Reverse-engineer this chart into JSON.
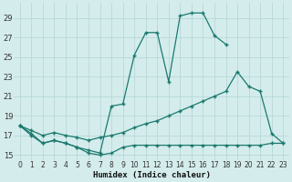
{
  "xlabel": "Humidex (Indice chaleur)",
  "color": "#1a7a6e",
  "bg_color": "#d4ecec",
  "grid_color": "#b8d8d8",
  "ylim": [
    14.5,
    30.5
  ],
  "xlim": [
    -0.5,
    23.5
  ],
  "yticks": [
    15,
    17,
    19,
    21,
    23,
    25,
    27,
    29
  ],
  "xticks": [
    0,
    1,
    2,
    3,
    4,
    5,
    6,
    7,
    8,
    9,
    10,
    11,
    12,
    13,
    14,
    15,
    16,
    17,
    18,
    19,
    20,
    21,
    22,
    23
  ],
  "curve_main": {
    "x": [
      0,
      1,
      2,
      3,
      4,
      5,
      6,
      7,
      8,
      9,
      10,
      11,
      12,
      13,
      14,
      15,
      16,
      17,
      18,
      19,
      20,
      21,
      22,
      23
    ],
    "y": [
      18,
      17,
      16.2,
      16.5,
      16.2,
      15.8,
      15.5,
      15.2,
      20.0,
      20.2,
      25.2,
      27.5,
      27.5,
      22.5,
      29.2,
      29.5,
      29.5,
      27.2,
      26.3,
      null,
      null,
      null,
      null,
      null
    ]
  },
  "curve_mid": {
    "x": [
      0,
      1,
      2,
      3,
      4,
      5,
      6,
      7,
      8,
      9,
      10,
      11,
      12,
      13,
      14,
      15,
      16,
      17,
      18,
      19,
      20,
      21,
      22,
      23
    ],
    "y": [
      18,
      17.5,
      17.0,
      17.3,
      17.0,
      16.8,
      16.5,
      16.8,
      17.0,
      17.3,
      17.8,
      18.2,
      18.5,
      19.0,
      19.5,
      20.0,
      20.5,
      21.0,
      21.5,
      23.5,
      22.0,
      21.5,
      17.2,
      16.2
    ]
  },
  "curve_bot": {
    "x": [
      0,
      1,
      2,
      3,
      4,
      5,
      6,
      7,
      8,
      9,
      10,
      11,
      12,
      13,
      14,
      15,
      16,
      17,
      18,
      19,
      20,
      21,
      22,
      23
    ],
    "y": [
      18,
      17.2,
      16.2,
      16.5,
      16.2,
      15.8,
      15.2,
      15.0,
      15.2,
      15.8,
      16.0,
      16.0,
      16.0,
      16.0,
      16.0,
      16.0,
      16.0,
      16.0,
      16.0,
      16.0,
      16.0,
      16.0,
      16.2,
      16.2
    ]
  }
}
